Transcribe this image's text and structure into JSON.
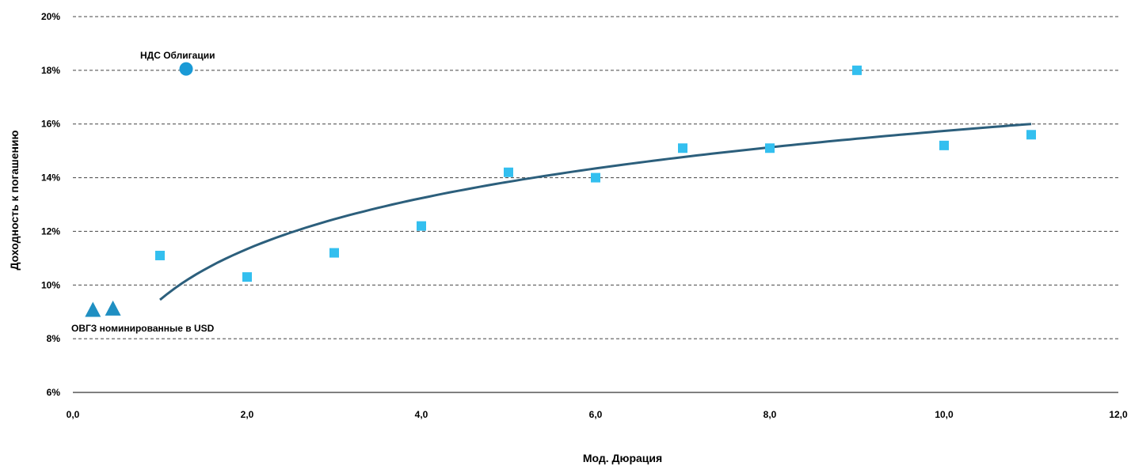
{
  "chart_data": {
    "type": "scatter",
    "xlabel": "Мод. Дюрация",
    "ylabel": "Доходность к погашению",
    "xlim": [
      0,
      12
    ],
    "ylim": [
      6,
      20
    ],
    "x_ticks": [
      {
        "value": 0,
        "label": "0,0"
      },
      {
        "value": 2,
        "label": "2,0"
      },
      {
        "value": 4,
        "label": "4,0"
      },
      {
        "value": 6,
        "label": "6,0"
      },
      {
        "value": 8,
        "label": "8,0"
      },
      {
        "value": 10,
        "label": "10,0"
      },
      {
        "value": 12,
        "label": "12,0"
      }
    ],
    "y_ticks": [
      {
        "value": 6,
        "label": "6%"
      },
      {
        "value": 8,
        "label": "8%"
      },
      {
        "value": 10,
        "label": "10%"
      },
      {
        "value": 12,
        "label": "12%"
      },
      {
        "value": 14,
        "label": "14%"
      },
      {
        "value": 16,
        "label": "16%"
      },
      {
        "value": 18,
        "label": "18%"
      },
      {
        "value": 20,
        "label": "20%"
      }
    ],
    "grid": "horizontal dashed",
    "series": [
      {
        "marker": "square",
        "color": "#33BFEF",
        "points": [
          {
            "x": 1.0,
            "y": 11.1
          },
          {
            "x": 2.0,
            "y": 10.3
          },
          {
            "x": 3.0,
            "y": 11.2
          },
          {
            "x": 4.0,
            "y": 12.2
          },
          {
            "x": 5.0,
            "y": 14.2
          },
          {
            "x": 6.0,
            "y": 14.0
          },
          {
            "x": 7.0,
            "y": 15.1
          },
          {
            "x": 8.0,
            "y": 15.1
          },
          {
            "x": 9.0,
            "y": 18.0
          },
          {
            "x": 10.0,
            "y": 15.2
          },
          {
            "x": 11.0,
            "y": 15.6
          }
        ]
      },
      {
        "marker": "circle",
        "color": "#1A9AD6",
        "points": [
          {
            "x": 1.3,
            "y": 18.05
          }
        ]
      },
      {
        "marker": "triangle",
        "color": "#1F8FC2",
        "points": [
          {
            "x": 0.23,
            "y": 9.05
          },
          {
            "x": 0.46,
            "y": 9.1
          }
        ]
      }
    ],
    "trendline": {
      "type": "logarithmic",
      "color": "#2C5F7C",
      "x_range": [
        1.0,
        11.0
      ],
      "y_start": 9.45,
      "y_end": 16.0
    },
    "annotations": [
      {
        "text": "НДС  Облигации",
        "x": 1.3,
        "y": 18.05,
        "position": "above"
      },
      {
        "text": "ОВГЗ номинированные в USD",
        "x": 0.0,
        "y": 9.0,
        "position": "below"
      }
    ]
  }
}
